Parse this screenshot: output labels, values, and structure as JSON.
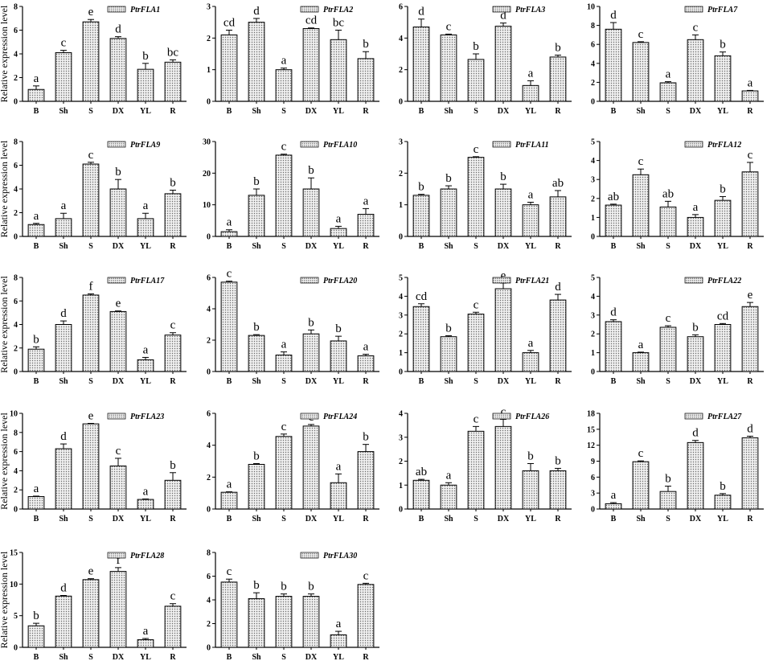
{
  "figure": {
    "categories": [
      "B",
      "Sh",
      "S",
      "DX",
      "YL",
      "R"
    ],
    "ylabel": "Relative expression level",
    "colors": {
      "bar_fill": "#d9d9d9",
      "bar_stroke": "#000000",
      "axis": "#000000"
    }
  },
  "chart_data": [
    {
      "type": "bar",
      "series": [
        {
          "name": "PtrFLA1",
          "values": [
            1.0,
            4.1,
            6.7,
            5.3,
            2.7,
            3.3
          ],
          "errors": [
            0.3,
            0.2,
            0.2,
            0.15,
            0.5,
            0.2
          ],
          "letters": [
            "a",
            "c",
            "e",
            "d",
            "b",
            "bc"
          ]
        }
      ],
      "categories": [
        "B",
        "Sh",
        "S",
        "DX",
        "YL",
        "R"
      ],
      "ylabel": "Relative expression level",
      "ylim": [
        0,
        8
      ],
      "yticks": [
        0,
        2,
        4,
        6,
        8
      ]
    },
    {
      "type": "bar",
      "series": [
        {
          "name": "PtrFLA2",
          "values": [
            2.1,
            2.5,
            1.0,
            2.3,
            1.95,
            1.35
          ],
          "errors": [
            0.15,
            0.12,
            0.05,
            0.02,
            0.3,
            0.22
          ],
          "letters": [
            "cd",
            "d",
            "a",
            "cd",
            "bc",
            "b"
          ]
        }
      ],
      "categories": [
        "B",
        "Sh",
        "S",
        "DX",
        "YL",
        "R"
      ],
      "ylabel": "",
      "ylim": [
        0,
        3
      ],
      "yticks": [
        0,
        1,
        2,
        3
      ]
    },
    {
      "type": "bar",
      "series": [
        {
          "name": "PtrFLA3",
          "values": [
            4.7,
            4.2,
            2.65,
            4.75,
            1.0,
            2.8
          ],
          "errors": [
            0.5,
            0.05,
            0.35,
            0.2,
            0.3,
            0.12
          ],
          "letters": [
            "d",
            "c",
            "b",
            "d",
            "a",
            "b"
          ]
        }
      ],
      "categories": [
        "B",
        "Sh",
        "S",
        "DX",
        "YL",
        "R"
      ],
      "ylabel": "",
      "ylim": [
        0,
        6
      ],
      "yticks": [
        0,
        2,
        4,
        6
      ]
    },
    {
      "type": "bar",
      "series": [
        {
          "name": "PtrFLA7",
          "values": [
            7.6,
            6.2,
            1.95,
            6.5,
            4.8,
            1.1
          ],
          "errors": [
            0.7,
            0.08,
            0.12,
            0.5,
            0.4,
            0.05
          ],
          "letters": [
            "d",
            "c",
            "a",
            "c",
            "b",
            "a"
          ]
        }
      ],
      "categories": [
        "B",
        "Sh",
        "S",
        "DX",
        "YL",
        "R"
      ],
      "ylabel": "",
      "ylim": [
        0,
        10
      ],
      "yticks": [
        0,
        2,
        4,
        6,
        8,
        10
      ]
    },
    {
      "type": "bar",
      "series": [
        {
          "name": "PtrFLA9",
          "values": [
            1.0,
            1.5,
            6.1,
            4.0,
            1.5,
            3.6
          ],
          "errors": [
            0.1,
            0.45,
            0.15,
            0.8,
            0.45,
            0.3
          ],
          "letters": [
            "a",
            "a",
            "c",
            "b",
            "a",
            "b"
          ]
        }
      ],
      "categories": [
        "B",
        "Sh",
        "S",
        "DX",
        "YL",
        "R"
      ],
      "ylabel": "Relative expression level",
      "ylim": [
        0,
        8
      ],
      "yticks": [
        0,
        2,
        4,
        6,
        8
      ]
    },
    {
      "type": "bar",
      "series": [
        {
          "name": "PtrFLA10",
          "values": [
            1.5,
            13.0,
            25.7,
            15.0,
            2.5,
            7.0
          ],
          "errors": [
            0.6,
            2.0,
            0.3,
            3.5,
            0.7,
            1.8
          ],
          "letters": [
            "a",
            "b",
            "c",
            "b",
            "a",
            "a"
          ]
        }
      ],
      "categories": [
        "B",
        "Sh",
        "S",
        "DX",
        "YL",
        "R"
      ],
      "ylabel": "",
      "ylim": [
        0,
        30
      ],
      "yticks": [
        0,
        10,
        20,
        30
      ]
    },
    {
      "type": "bar",
      "series": [
        {
          "name": "PtrFLA11",
          "values": [
            1.3,
            1.5,
            2.5,
            1.5,
            1.0,
            1.25
          ],
          "errors": [
            0.03,
            0.1,
            0.02,
            0.15,
            0.08,
            0.2
          ],
          "letters": [
            "b",
            "b",
            "c",
            "b",
            "a",
            "ab"
          ]
        }
      ],
      "categories": [
        "B",
        "Sh",
        "S",
        "DX",
        "YL",
        "R"
      ],
      "ylabel": "",
      "ylim": [
        0,
        3
      ],
      "yticks": [
        0,
        1,
        2,
        3
      ]
    },
    {
      "type": "bar",
      "series": [
        {
          "name": "PtrFLA12",
          "values": [
            1.65,
            3.25,
            1.55,
            1.0,
            1.9,
            3.4
          ],
          "errors": [
            0.05,
            0.3,
            0.3,
            0.15,
            0.2,
            0.5
          ],
          "letters": [
            "ab",
            "c",
            "ab",
            "a",
            "b",
            "c"
          ]
        }
      ],
      "categories": [
        "B",
        "Sh",
        "S",
        "DX",
        "YL",
        "R"
      ],
      "ylabel": "",
      "ylim": [
        0,
        5
      ],
      "yticks": [
        0,
        1,
        2,
        3,
        4,
        5
      ]
    },
    {
      "type": "bar",
      "series": [
        {
          "name": "PtrFLA17",
          "values": [
            1.9,
            4.0,
            6.5,
            5.1,
            1.0,
            3.1
          ],
          "errors": [
            0.2,
            0.3,
            0.1,
            0.05,
            0.2,
            0.2
          ],
          "letters": [
            "b",
            "d",
            "f",
            "e",
            "a",
            "c"
          ]
        }
      ],
      "categories": [
        "B",
        "Sh",
        "S",
        "DX",
        "YL",
        "R"
      ],
      "ylabel": "Relative expression level",
      "ylim": [
        0,
        8
      ],
      "yticks": [
        0,
        2,
        4,
        6,
        8
      ]
    },
    {
      "type": "bar",
      "series": [
        {
          "name": "PtrFLA20",
          "values": [
            5.7,
            2.3,
            1.05,
            2.4,
            1.95,
            1.0
          ],
          "errors": [
            0.06,
            0.05,
            0.2,
            0.25,
            0.3,
            0.1
          ],
          "letters": [
            "c",
            "b",
            "a",
            "b",
            "b",
            "a"
          ]
        }
      ],
      "categories": [
        "B",
        "Sh",
        "S",
        "DX",
        "YL",
        "R"
      ],
      "ylabel": "",
      "ylim": [
        0,
        6
      ],
      "yticks": [
        0,
        2,
        4,
        6
      ]
    },
    {
      "type": "bar",
      "series": [
        {
          "name": "PtrFLA21",
          "values": [
            3.45,
            1.85,
            3.05,
            4.4,
            1.0,
            3.8
          ],
          "errors": [
            0.15,
            0.05,
            0.1,
            0.3,
            0.12,
            0.3
          ],
          "letters": [
            "cd",
            "b",
            "c",
            "e",
            "a",
            "d"
          ]
        }
      ],
      "categories": [
        "B",
        "Sh",
        "S",
        "DX",
        "YL",
        "R"
      ],
      "ylabel": "",
      "ylim": [
        0,
        5
      ],
      "yticks": [
        0,
        1,
        2,
        3,
        4,
        5
      ]
    },
    {
      "type": "bar",
      "series": [
        {
          "name": "PtrFLA22",
          "values": [
            2.65,
            1.0,
            2.35,
            1.85,
            2.5,
            3.45
          ],
          "errors": [
            0.1,
            0.03,
            0.08,
            0.1,
            0.05,
            0.22
          ],
          "letters": [
            "d",
            "a",
            "c",
            "b",
            "cd",
            "e"
          ]
        }
      ],
      "categories": [
        "B",
        "Sh",
        "S",
        "DX",
        "YL",
        "R"
      ],
      "ylabel": "",
      "ylim": [
        0,
        5
      ],
      "yticks": [
        0,
        1,
        2,
        3,
        4,
        5
      ]
    },
    {
      "type": "bar",
      "series": [
        {
          "name": "PtrFLA23",
          "values": [
            1.3,
            6.3,
            8.9,
            4.5,
            1.0,
            3.0
          ],
          "errors": [
            0.05,
            0.5,
            0.05,
            0.8,
            0.05,
            0.8
          ],
          "letters": [
            "a",
            "d",
            "e",
            "c",
            "a",
            "b"
          ]
        }
      ],
      "categories": [
        "B",
        "Sh",
        "S",
        "DX",
        "YL",
        "R"
      ],
      "ylabel": "Relative expression level",
      "ylim": [
        0,
        10
      ],
      "yticks": [
        0,
        2,
        4,
        6,
        8,
        10
      ]
    },
    {
      "type": "bar",
      "series": [
        {
          "name": "PtrFLA24",
          "values": [
            1.05,
            2.8,
            4.55,
            5.2,
            1.65,
            3.6
          ],
          "errors": [
            0.03,
            0.05,
            0.15,
            0.1,
            0.55,
            0.45
          ],
          "letters": [
            "a",
            "b",
            "c",
            "c",
            "a",
            "b"
          ]
        }
      ],
      "categories": [
        "B",
        "Sh",
        "S",
        "DX",
        "YL",
        "R"
      ],
      "ylabel": "",
      "ylim": [
        0,
        6
      ],
      "yticks": [
        0,
        2,
        4,
        6
      ]
    },
    {
      "type": "bar",
      "series": [
        {
          "name": "PtrFLA26",
          "values": [
            1.2,
            1.0,
            3.25,
            3.45,
            1.6,
            1.6
          ],
          "errors": [
            0.04,
            0.1,
            0.2,
            0.3,
            0.3,
            0.1
          ],
          "letters": [
            "ab",
            "a",
            "c",
            "c",
            "b",
            "b"
          ]
        }
      ],
      "categories": [
        "B",
        "Sh",
        "S",
        "DX",
        "YL",
        "R"
      ],
      "ylabel": "",
      "ylim": [
        0,
        4
      ],
      "yticks": [
        0,
        1,
        2,
        3,
        4
      ]
    },
    {
      "type": "bar",
      "series": [
        {
          "name": "PtrFLA27",
          "values": [
            1.0,
            8.9,
            3.3,
            12.5,
            2.6,
            13.4
          ],
          "errors": [
            0.2,
            0.15,
            1.0,
            0.4,
            0.3,
            0.3
          ],
          "letters": [
            "a",
            "c",
            "b",
            "d",
            "b",
            "d"
          ]
        }
      ],
      "categories": [
        "B",
        "Sh",
        "S",
        "DX",
        "YL",
        "R"
      ],
      "ylabel": "",
      "ylim": [
        0,
        18
      ],
      "yticks": [
        0,
        3,
        6,
        9,
        12,
        15,
        18
      ]
    },
    {
      "type": "bar",
      "series": [
        {
          "name": "PtrFLA28",
          "values": [
            3.4,
            8.1,
            10.7,
            12.0,
            1.2,
            6.5
          ],
          "errors": [
            0.4,
            0.1,
            0.15,
            0.6,
            0.2,
            0.4
          ],
          "letters": [
            "b",
            "d",
            "e",
            "f",
            "a",
            "c"
          ]
        }
      ],
      "categories": [
        "B",
        "Sh",
        "S",
        "DX",
        "YL",
        "R"
      ],
      "ylabel": "Relative expression level",
      "ylim": [
        0,
        15
      ],
      "yticks": [
        0,
        5,
        10,
        15
      ]
    },
    {
      "type": "bar",
      "series": [
        {
          "name": "PtrFLA30",
          "values": [
            5.5,
            4.1,
            4.3,
            4.3,
            1.05,
            5.3
          ],
          "errors": [
            0.25,
            0.5,
            0.2,
            0.2,
            0.3,
            0.1
          ],
          "letters": [
            "c",
            "b",
            "b",
            "b",
            "a",
            "c"
          ]
        }
      ],
      "categories": [
        "B",
        "Sh",
        "S",
        "DX",
        "YL",
        "R"
      ],
      "ylabel": "",
      "ylim": [
        0,
        8
      ],
      "yticks": [
        0,
        2,
        4,
        6,
        8
      ]
    }
  ]
}
